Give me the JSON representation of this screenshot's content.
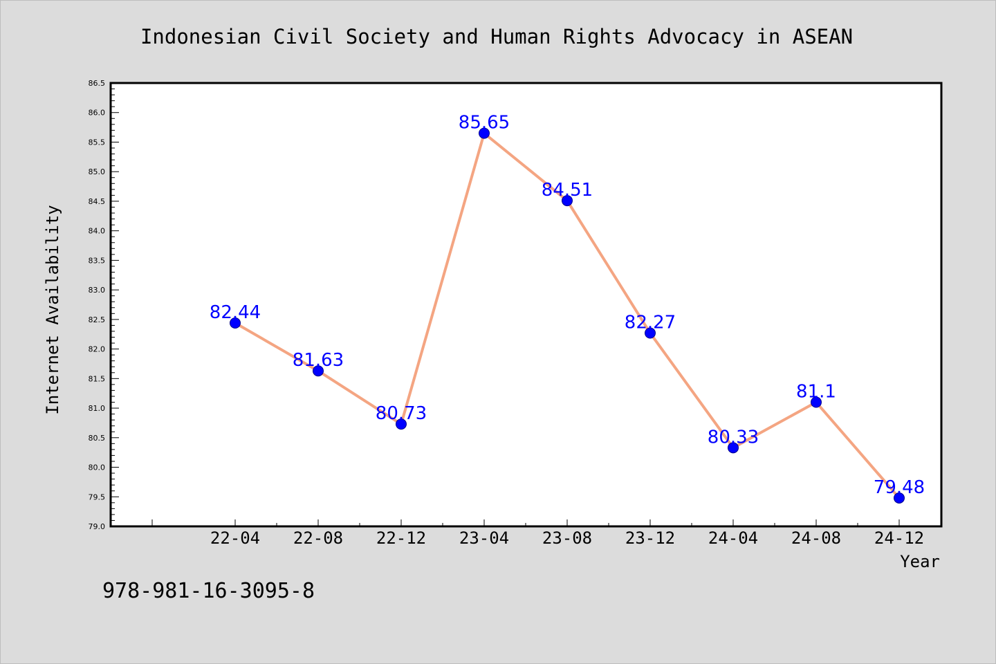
{
  "chart_data": {
    "type": "line",
    "title": "Indonesian Civil Society and Human Rights Advocacy in ASEAN",
    "xlabel": "Year",
    "ylabel": "Internet Availability",
    "footnote": "978-981-16-3095-8",
    "categories": [
      "22-04",
      "22-08",
      "22-12",
      "23-04",
      "23-08",
      "23-12",
      "24-04",
      "24-08",
      "24-12"
    ],
    "values": [
      82.44,
      81.63,
      80.73,
      85.65,
      84.51,
      82.27,
      80.33,
      81.1,
      79.48
    ],
    "data_labels": [
      "82.44",
      "81.63",
      "80.73",
      "85.65",
      "84.51",
      "82.27",
      "80.33",
      "81.1",
      "79.48"
    ],
    "ylim": [
      79.0,
      86.5
    ],
    "ytick_labels": [
      "79.0",
      "79.5",
      "80.0",
      "80.5",
      "81.0",
      "81.5",
      "82.0",
      "82.5",
      "83.0",
      "83.5",
      "84.0",
      "84.5",
      "85.0",
      "85.5",
      "86.0",
      "86.5"
    ],
    "grid": false,
    "legend": "none",
    "colors": {
      "background": "#dcdcdc",
      "plot_background": "#ffffff",
      "line": "#f4a582",
      "marker": "#0000ff",
      "data_label": "#0000ff",
      "text": "#000000"
    }
  }
}
